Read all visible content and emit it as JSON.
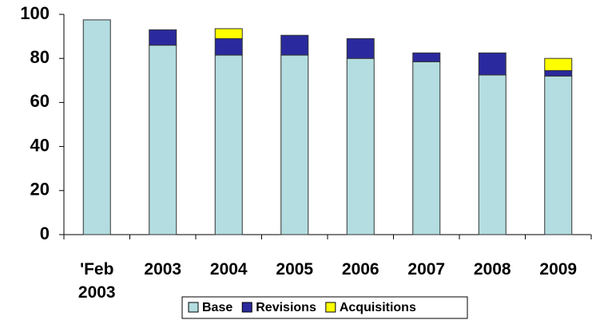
{
  "chart_data": {
    "type": "stacked_bar",
    "categories": [
      "'Feb 2003",
      "2003",
      "2004",
      "2005",
      "2006",
      "2007",
      "2008",
      "2009"
    ],
    "series": [
      {
        "name": "Base",
        "color": "#b3dde0",
        "values": [
          97.5,
          86,
          81.5,
          81.5,
          80,
          78.5,
          72.5,
          72
        ]
      },
      {
        "name": "Revisions",
        "color": "#2a2a9e",
        "values": [
          0,
          7,
          7.5,
          9,
          9,
          4,
          10,
          2.5
        ]
      },
      {
        "name": "Acquisitions",
        "color": "#ffff00",
        "values": [
          0,
          0,
          4.5,
          0,
          0,
          0,
          0,
          5.5
        ]
      }
    ],
    "ylim": [
      0,
      100
    ],
    "yticks": [
      0,
      20,
      40,
      60,
      80,
      100
    ],
    "grid": false,
    "legend": "bottom"
  }
}
